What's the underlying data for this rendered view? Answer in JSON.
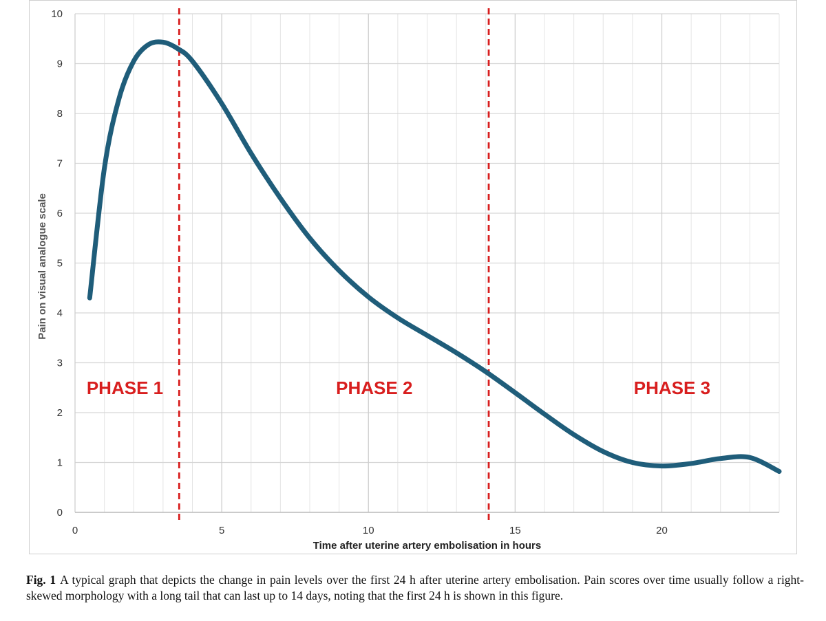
{
  "chart_data": {
    "type": "line",
    "title": "",
    "xlabel": "Time after uterine artery embolisation in hours",
    "ylabel": "Pain on visual analogue scale",
    "xlim": [
      0,
      24
    ],
    "ylim": [
      0,
      10
    ],
    "x_ticks": [
      0,
      5,
      10,
      15,
      20
    ],
    "y_ticks": [
      0,
      1,
      2,
      3,
      4,
      5,
      6,
      7,
      8,
      9,
      10
    ],
    "grid": true,
    "series": [
      {
        "name": "Pain score",
        "color": "#1f5d7a",
        "x": [
          0.5,
          1.0,
          1.5,
          2.0,
          2.5,
          3.0,
          3.5,
          4.0,
          5.0,
          6.0,
          7.0,
          8.0,
          9.0,
          10.0,
          11.0,
          12.0,
          13.0,
          14.0,
          15.0,
          16.0,
          17.0,
          18.0,
          19.0,
          20.0,
          21.0,
          22.0,
          23.0,
          24.0
        ],
        "y": [
          4.3,
          6.9,
          8.3,
          9.05,
          9.38,
          9.43,
          9.3,
          9.05,
          8.2,
          7.2,
          6.3,
          5.5,
          4.85,
          4.32,
          3.9,
          3.55,
          3.2,
          2.82,
          2.4,
          1.97,
          1.56,
          1.22,
          1.0,
          0.93,
          0.98,
          1.08,
          1.1,
          0.82
        ]
      }
    ],
    "phase_boundaries": [
      {
        "x": 3.55,
        "color": "#d81e1e"
      },
      {
        "x": 14.1,
        "color": "#d81e1e"
      }
    ],
    "annotations": [
      {
        "text": "PHASE 1",
        "x": 1.7,
        "y": 2.5,
        "color": "#d81e1e"
      },
      {
        "text": "PHASE 2",
        "x": 10.2,
        "y": 2.5,
        "color": "#d81e1e"
      },
      {
        "text": "PHASE 3",
        "x": 20.35,
        "y": 2.5,
        "color": "#d81e1e"
      }
    ]
  },
  "caption": {
    "label": "Fig. 1",
    "text": "A typical graph that depicts the change in pain levels over the first 24 h after uterine artery embolisation. Pain scores over time usually follow a right-skewed morphology with a long tail that can last up to 14 days, noting that the first 24 h is shown in this figure."
  }
}
